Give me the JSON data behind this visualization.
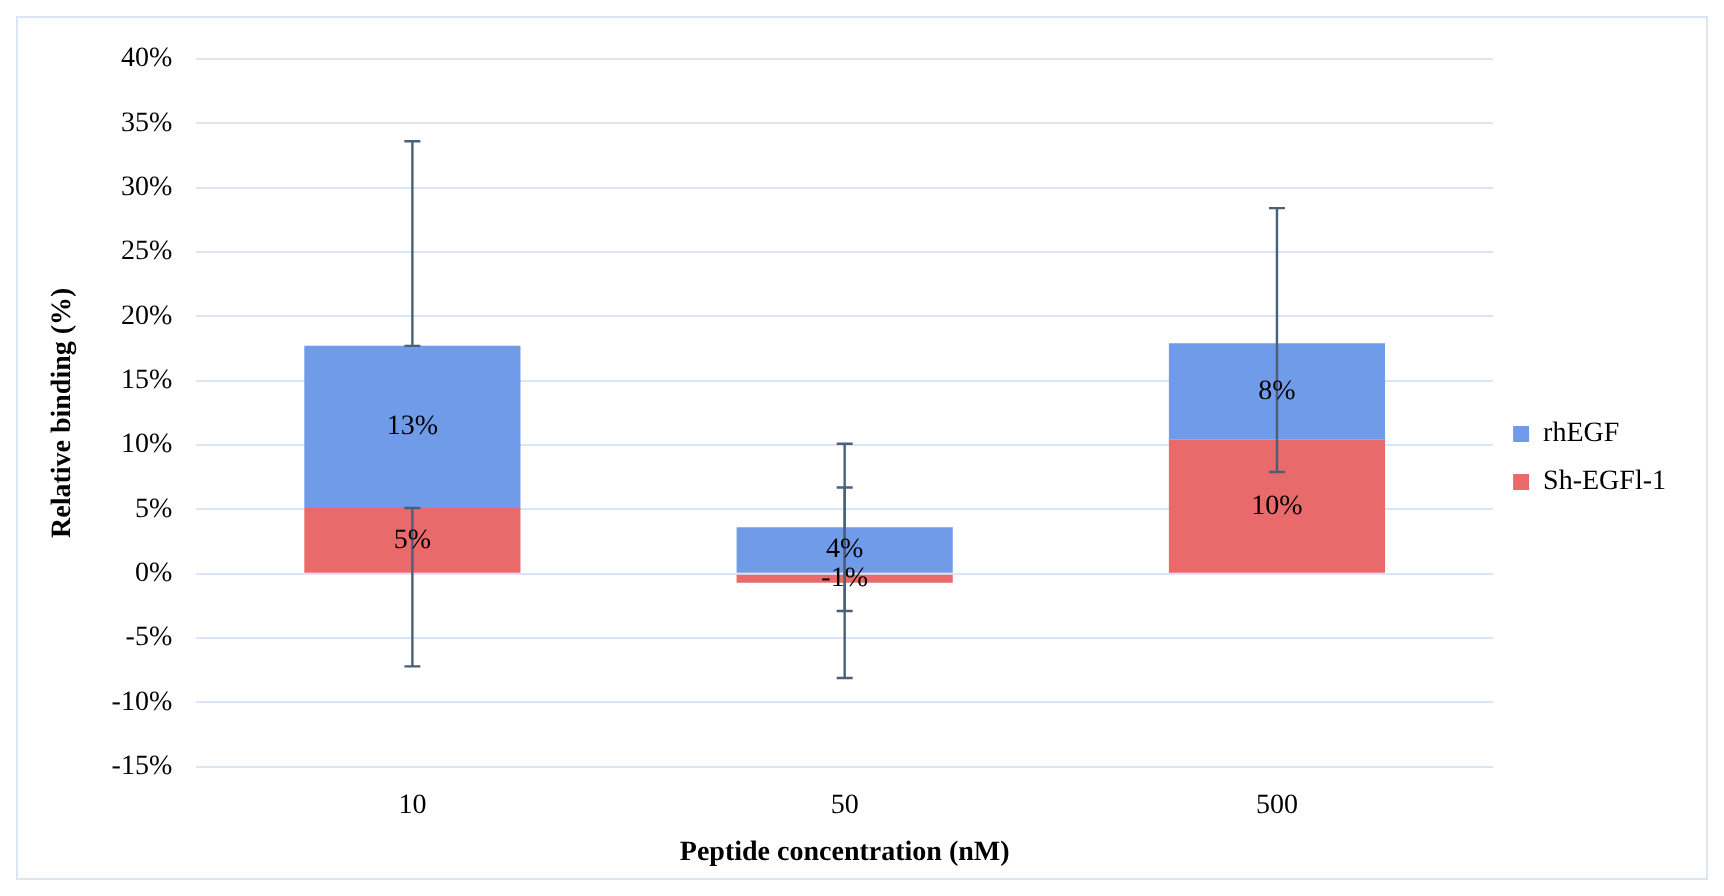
{
  "chart_data": {
    "type": "bar",
    "stacked": true,
    "xlabel": "Peptide concentration (nM)",
    "ylabel": "Relative binding (%)",
    "categories": [
      "10",
      "50",
      "500"
    ],
    "series": [
      {
        "name": "Sh-EGFl-1",
        "color": "#e86a6a",
        "values": [
          5.1,
          -0.7,
          10.4
        ],
        "value_labels": [
          "5%",
          "-1%",
          "10%"
        ],
        "errors": [
          [
            -7.2,
            5.1
          ],
          [
            -8.1,
            6.7
          ],
          null
        ]
      },
      {
        "name": "rhEGF",
        "color": "#6f9be8",
        "values": [
          12.6,
          3.6,
          7.5
        ],
        "value_labels": [
          "13%",
          "4%",
          "8%"
        ],
        "errors": [
          [
            17.7,
            33.6
          ],
          [
            -2.9,
            10.1
          ],
          [
            7.9,
            28.4
          ]
        ]
      }
    ],
    "ylim": [
      -15,
      40
    ],
    "yticks": [
      {
        "value": -15,
        "label": "-15%"
      },
      {
        "value": -10,
        "label": "-10%"
      },
      {
        "value": -5,
        "label": "-5%"
      },
      {
        "value": 0,
        "label": "0%"
      },
      {
        "value": 5,
        "label": "5%"
      },
      {
        "value": 10,
        "label": "10%"
      },
      {
        "value": 15,
        "label": "15%"
      },
      {
        "value": 20,
        "label": "20%"
      },
      {
        "value": 25,
        "label": "25%"
      },
      {
        "value": 30,
        "label": "30%"
      },
      {
        "value": 35,
        "label": "35%"
      },
      {
        "value": 40,
        "label": "40%"
      }
    ],
    "grid": "y",
    "legend": "right"
  }
}
